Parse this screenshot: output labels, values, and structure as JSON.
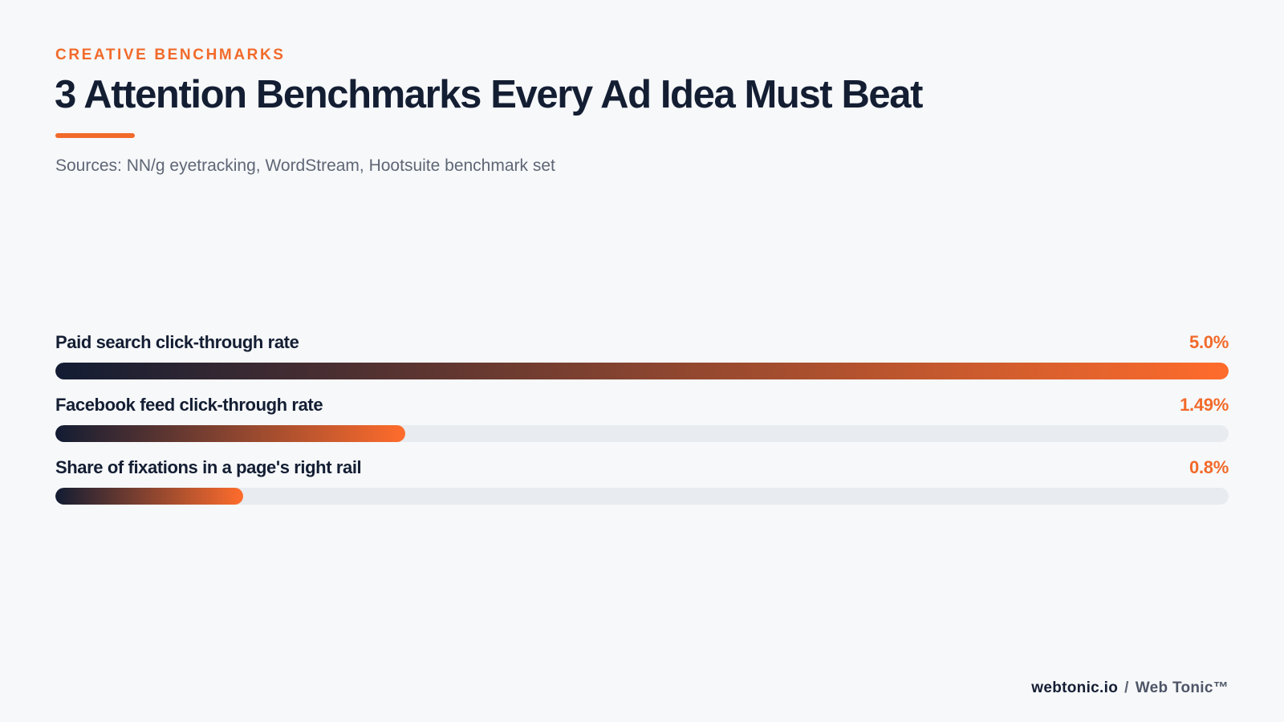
{
  "header": {
    "eyebrow": "CREATIVE BENCHMARKS",
    "title": "3 Attention Benchmarks Every Ad Idea Must Beat",
    "subtitle": "Sources: NN/g eyetracking, WordStream, Hootsuite benchmark set"
  },
  "colors": {
    "accent": "#f26a2a",
    "navy": "#141e33",
    "track": "#e8ebef",
    "background": "#f6f8fa"
  },
  "chart_data": {
    "type": "bar",
    "orientation": "horizontal",
    "categories": [
      "Paid search click-through rate",
      "Facebook feed click-through rate",
      "Share of fixations in a page's right rail"
    ],
    "values": [
      5.0,
      1.49,
      0.8
    ],
    "value_labels": [
      "5.0%",
      "1.49%",
      "0.8%"
    ],
    "unit": "%",
    "xlim": [
      0,
      5.0
    ],
    "grid": false,
    "legend": "none"
  },
  "footer": {
    "domain": "webtonic.io",
    "separator": "/",
    "brand": "Web Tonic™"
  }
}
